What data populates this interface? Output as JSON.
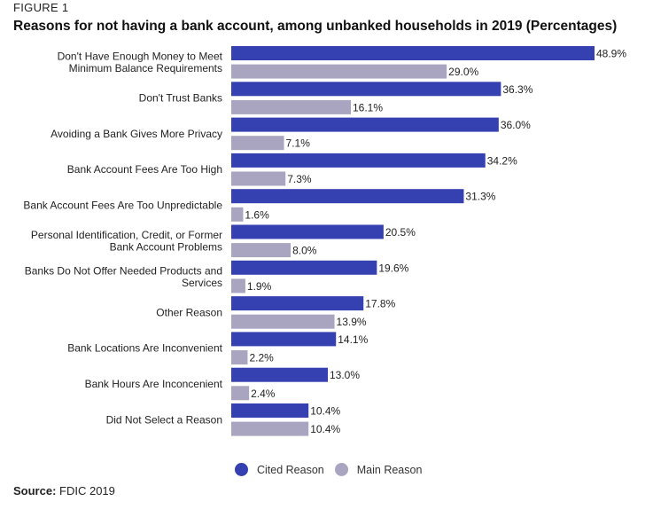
{
  "figure_label": "FIGURE 1",
  "source": {
    "label": "Source:",
    "text": "FDIC 2019"
  },
  "colors": {
    "cited": "#3641b1",
    "main": "#a9a5c0"
  },
  "chart_data": {
    "type": "bar",
    "orientation": "horizontal",
    "title": "Reasons for not having a bank account, among unbanked households in 2019 (Percentages)",
    "categories": [
      "Don't Have Enough Money to Meet Minimum Balance Requirements",
      "Don't Trust Banks",
      "Avoiding a Bank Gives More Privacy",
      "Bank Account Fees Are Too High",
      "Bank Account Fees Are Too Unpredictable",
      "Personal Identification, Credit, or Former Bank Account Problems",
      "Banks Do Not Offer Needed Products and Services",
      "Other Reason",
      "Bank Locations Are Inconvenient",
      "Bank Hours Are Inconcenient",
      "Did Not Select a Reason"
    ],
    "category_lines": [
      [
        "Don't Have Enough Money to Meet",
        "Minimum Balance Requirements"
      ],
      [
        "Don't Trust Banks"
      ],
      [
        "Avoiding a Bank Gives More Privacy"
      ],
      [
        "Bank Account Fees Are Too High"
      ],
      [
        "Bank Account Fees Are Too Unpredictable"
      ],
      [
        "Personal Identification, Credit, or Former",
        "Bank Account Problems"
      ],
      [
        "Banks Do Not Offer Needed Products and",
        "Services"
      ],
      [
        "Other Reason"
      ],
      [
        "Bank Locations Are Inconvenient"
      ],
      [
        "Bank Hours Are Inconcenient"
      ],
      [
        "Did Not Select a Reason"
      ]
    ],
    "series": [
      {
        "name": "Cited Reason",
        "values": [
          48.9,
          36.3,
          36.0,
          34.2,
          31.3,
          20.5,
          19.6,
          17.8,
          14.1,
          13.0,
          10.4
        ]
      },
      {
        "name": "Main Reason",
        "values": [
          29.0,
          16.1,
          7.1,
          7.3,
          1.6,
          8.0,
          1.9,
          13.9,
          2.2,
          2.4,
          10.4
        ]
      }
    ],
    "value_suffix": "%",
    "value_decimals": 1,
    "xlim": [
      0,
      50
    ],
    "grid": false,
    "legend_position": "bottom"
  }
}
